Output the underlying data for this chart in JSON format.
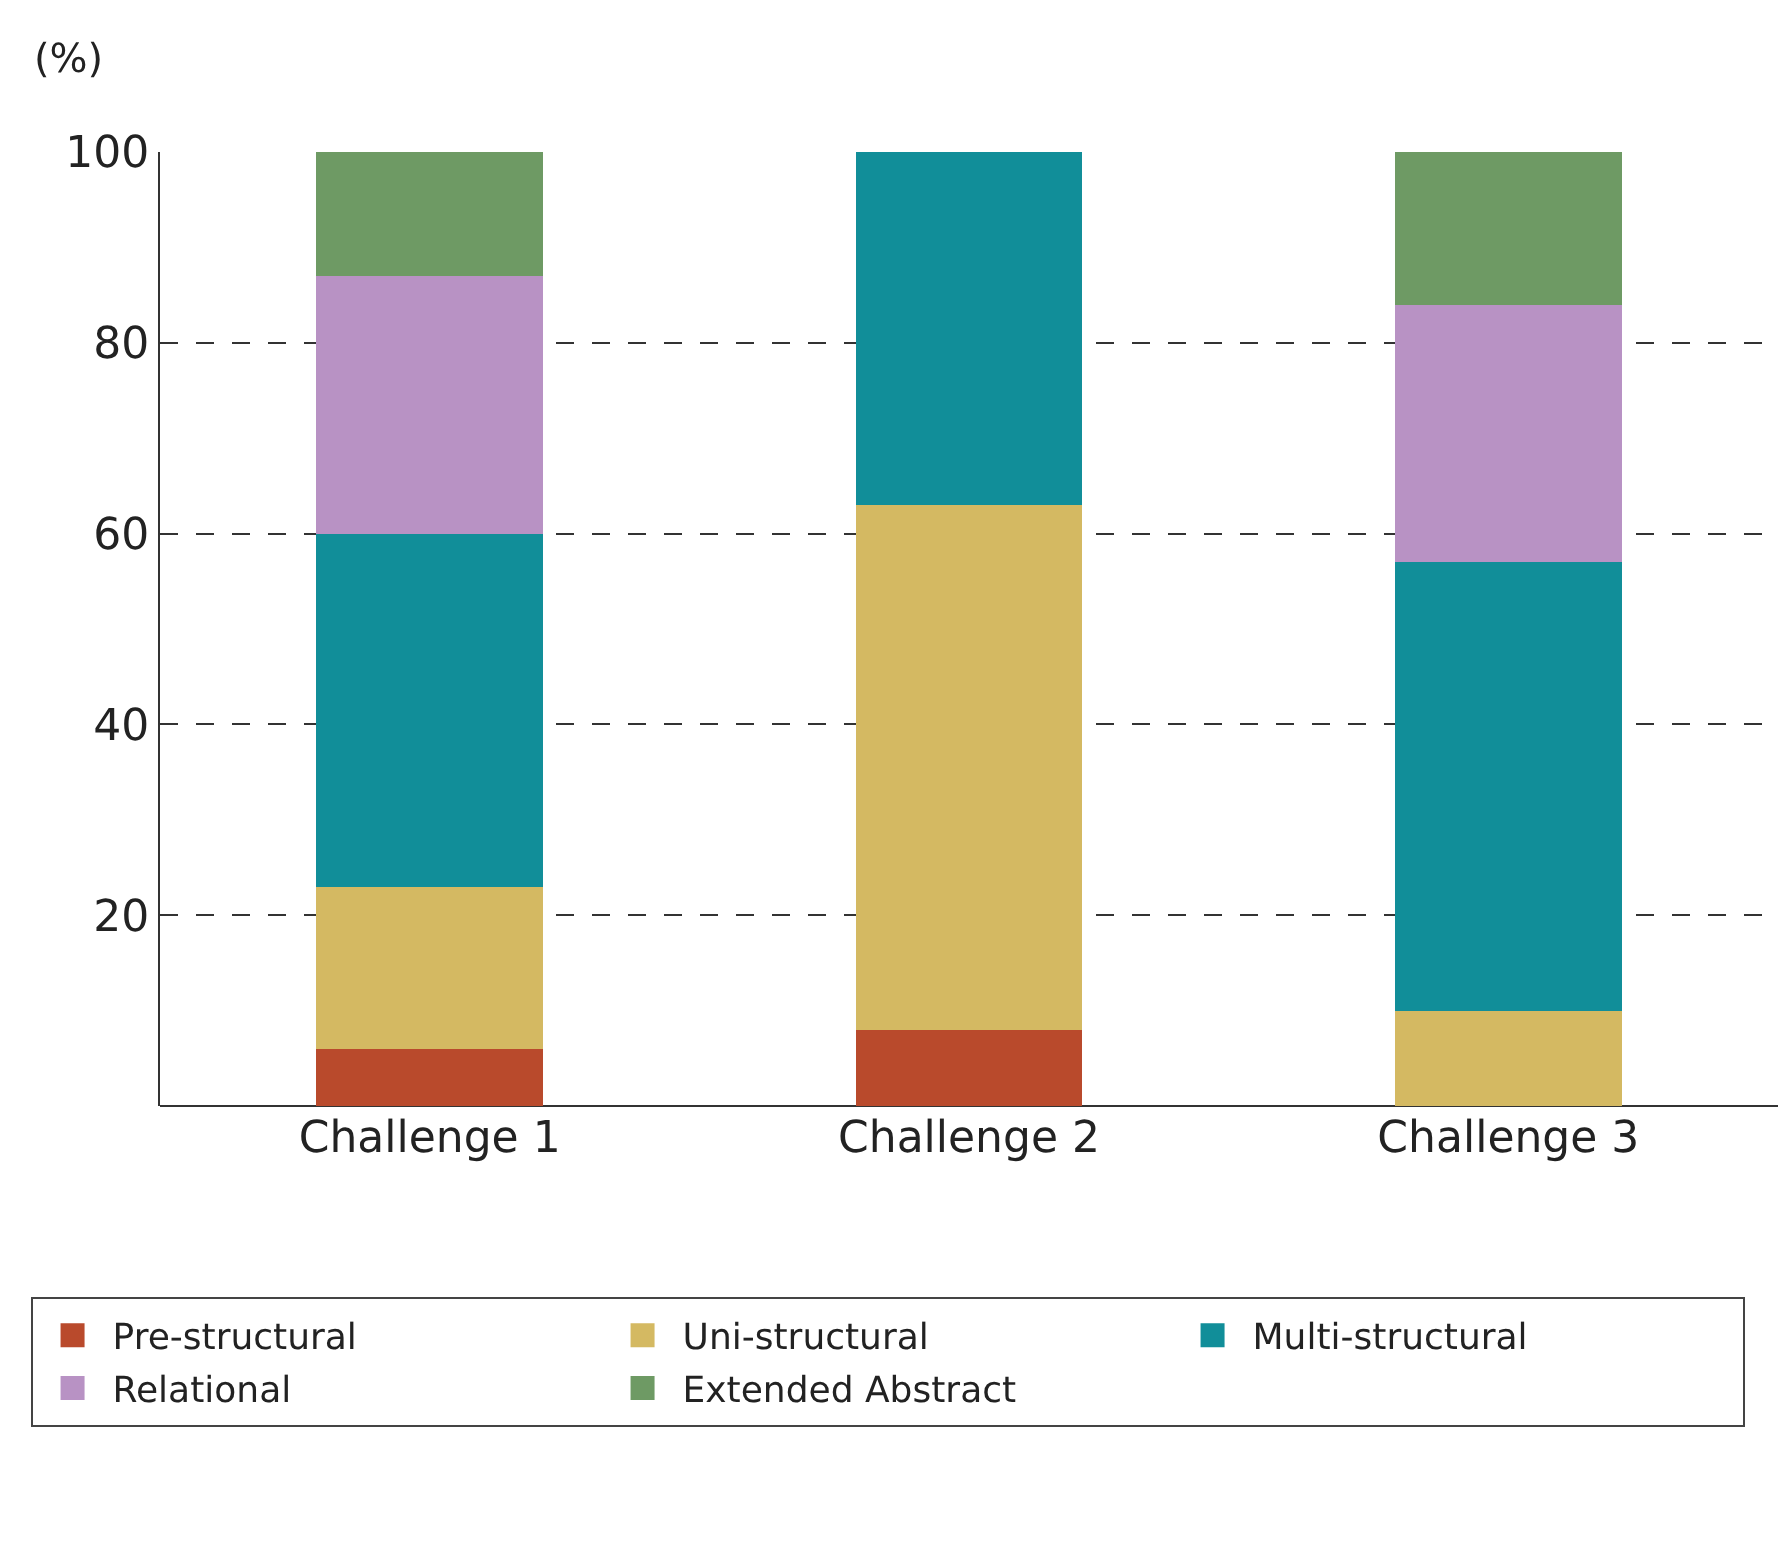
{
  "chart_data": {
    "type": "bar",
    "stacked": true,
    "ylabel": "(%)",
    "categories": [
      "Challenge 1",
      "Challenge 2",
      "Challenge 3"
    ],
    "series": [
      {
        "name": "Pre-structural",
        "color": "#b94a2c",
        "values": [
          6,
          8,
          0
        ]
      },
      {
        "name": "Uni-structural",
        "color": "#d4b962",
        "values": [
          17,
          55,
          10
        ]
      },
      {
        "name": "Multi-structural",
        "color": "#118e99",
        "values": [
          37,
          37,
          47
        ]
      },
      {
        "name": "Relational",
        "color": "#b892c4",
        "values": [
          27,
          null,
          27
        ]
      },
      {
        "name": "Extended Abstract",
        "color": "#6e9a64",
        "values": [
          13,
          null,
          16
        ]
      }
    ],
    "ylim": [
      0,
      100
    ],
    "yticks": [
      20,
      40,
      60,
      80,
      100
    ],
    "grid": "y",
    "legend": "bottom"
  }
}
